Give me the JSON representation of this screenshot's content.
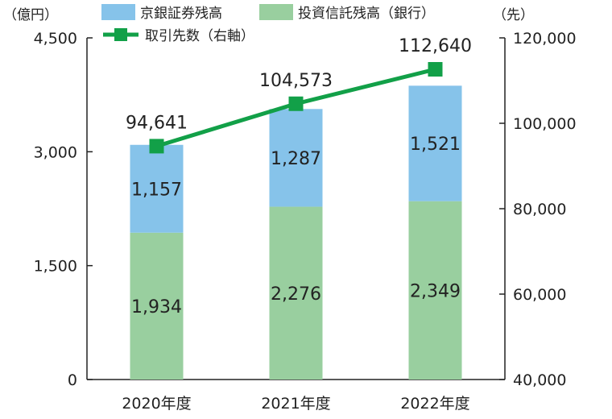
{
  "chart_data": {
    "type": "bar",
    "categories": [
      "2020年度",
      "2021年度",
      "2022年度"
    ],
    "left_unit": "（億円）",
    "right_unit": "（先）",
    "left_ticks": [
      "0",
      "1,500",
      "3,000",
      "4,500"
    ],
    "right_ticks": [
      "40,000",
      "60,000",
      "80,000",
      "100,000",
      "120,000"
    ],
    "ylim_left": [
      0,
      4500
    ],
    "ylim_right": [
      40000,
      120000
    ],
    "series": [
      {
        "name": "投資信託残高（銀行）",
        "type": "bar",
        "stack": "bottom",
        "axis": "left",
        "values": [
          1934,
          2276,
          2349
        ],
        "labels": [
          "1,934",
          "2,276",
          "2,349"
        ],
        "color": "#99cf9f"
      },
      {
        "name": "京銀証券残高",
        "type": "bar",
        "stack": "top",
        "axis": "left",
        "values": [
          1157,
          1287,
          1521
        ],
        "labels": [
          "1,157",
          "1,287",
          "1,521"
        ],
        "color": "#86c3ea"
      },
      {
        "name": "取引先数（右軸）",
        "type": "line",
        "axis": "right",
        "values": [
          94641,
          104573,
          112640
        ],
        "labels": [
          "94,641",
          "104,573",
          "112,640"
        ],
        "color": "#12a048"
      }
    ]
  }
}
